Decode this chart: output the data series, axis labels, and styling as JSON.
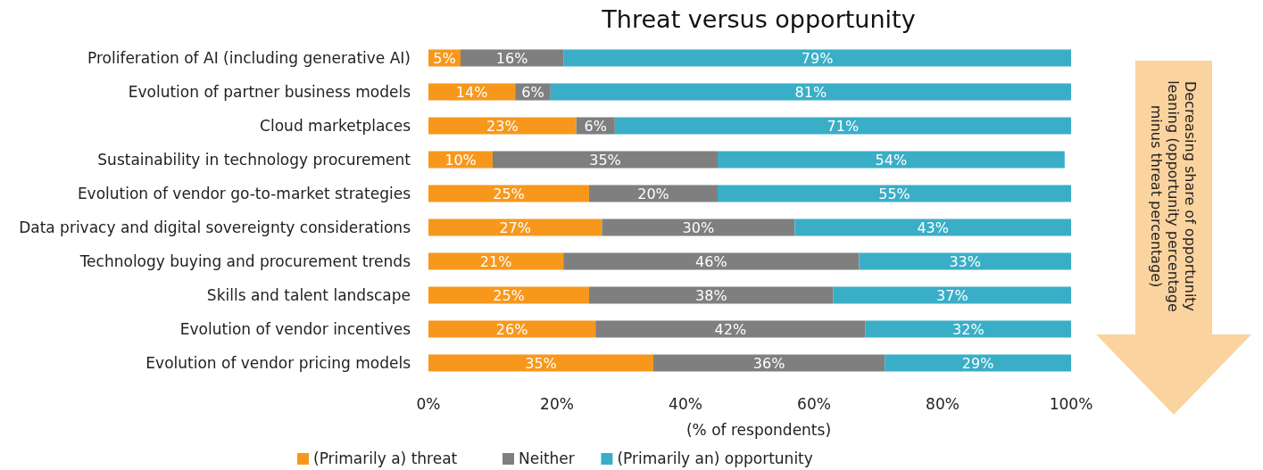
{
  "chart_data": {
    "type": "bar",
    "orientation": "horizontal",
    "stacked": true,
    "title": "Threat versus opportunity",
    "xlabel": "(% of respondents)",
    "categories": [
      "Proliferation of AI (including generative AI)",
      "Evolution of partner business models",
      "Cloud marketplaces",
      "Sustainability in technology procurement",
      "Evolution of vendor go-to-market strategies",
      "Data privacy and digital sovereignty considerations",
      "Technology buying and procurement trends",
      "Skills and talent landscape",
      "Evolution of vendor incentives",
      "Evolution of vendor pricing models"
    ],
    "series": [
      {
        "name": "(Primarily a) threat",
        "color": "#f7981d",
        "values": [
          5,
          13.5,
          23,
          10,
          25,
          27,
          21,
          25,
          26,
          35
        ],
        "value_labels": [
          "5%",
          "14%",
          "23%",
          "10%",
          "25%",
          "27%",
          "21%",
          "25%",
          "26%",
          "35%"
        ]
      },
      {
        "name": "Neither",
        "color": "#7f7f7f",
        "values": [
          16,
          5.5,
          6,
          35,
          20,
          30,
          46,
          38,
          42,
          36
        ],
        "value_labels": [
          "16%",
          "6%",
          "6%",
          "35%",
          "20%",
          "30%",
          "46%",
          "38%",
          "42%",
          "36%"
        ]
      },
      {
        "name": "(Primarily an) opportunity",
        "color": "#3aaec7",
        "values": [
          79,
          81,
          71,
          54,
          55,
          43,
          33,
          37,
          32,
          29
        ],
        "value_labels": [
          "79%",
          "81%",
          "71%",
          "54%",
          "55%",
          "43%",
          "33%",
          "37%",
          "32%",
          "29%"
        ]
      }
    ],
    "xlim": [
      0,
      100
    ],
    "xticks": [
      {
        "value": 0,
        "label": "0%"
      },
      {
        "value": 20,
        "label": "20%"
      },
      {
        "value": 40,
        "label": "40%"
      },
      {
        "value": 60,
        "label": "60%"
      },
      {
        "value": 80,
        "label": "80%"
      },
      {
        "value": 100,
        "label": "100%"
      }
    ],
    "grid": false,
    "legend": "bottom",
    "annotations": [
      "Decreasing share of opportunity\nleaning (opportunity percentage\nminus threat percentage)"
    ]
  }
}
